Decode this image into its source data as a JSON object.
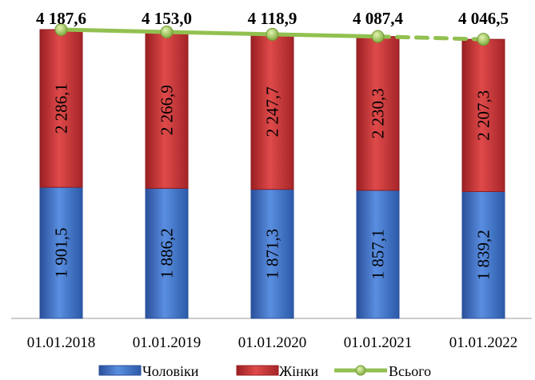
{
  "chart_data": {
    "type": "bar",
    "stacked": true,
    "categories": [
      "01.01.2018",
      "01.01.2019",
      "01.01.2020",
      "01.01.2021",
      "01.01.2022"
    ],
    "series": [
      {
        "name": "Чоловіки",
        "values": [
          1901.5,
          1886.2,
          1871.3,
          1857.1,
          1839.2
        ],
        "labels": [
          "1 901,5",
          "1 886,2",
          "1 871,3",
          "1 857,1",
          "1 839,2"
        ],
        "color": "#4472c4"
      },
      {
        "name": "Жінки",
        "values": [
          2286.1,
          2266.9,
          2247.7,
          2230.3,
          2207.3
        ],
        "labels": [
          "2 286,1",
          "2 266,9",
          "2 247,7",
          "2 230,3",
          "2 207,3"
        ],
        "color": "#c0393b"
      }
    ],
    "total": {
      "name": "Всього",
      "values": [
        4187.6,
        4153.0,
        4118.9,
        4087.4,
        4046.5
      ],
      "labels": [
        "4 187,6",
        "4 153,0",
        "4 118,9",
        "4 087,4",
        "4 046,5"
      ],
      "line_color": "#92c050",
      "marker_color": "#8cbf3f",
      "dashed_last_segment": true
    },
    "title": "",
    "xlabel": "",
    "ylabel": "",
    "ylim": [
      0,
      4187.6
    ],
    "grid": false,
    "legend": "bottom"
  }
}
